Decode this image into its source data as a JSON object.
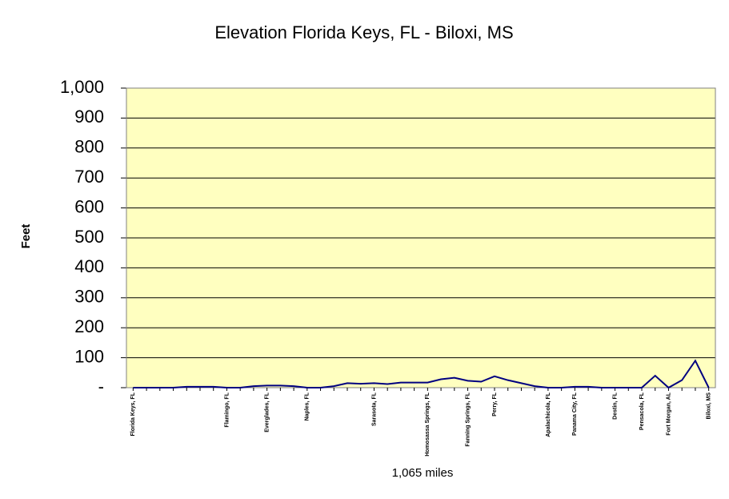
{
  "chart_data": {
    "type": "line",
    "title": "Elevation Florida Keys, FL - Biloxi, MS",
    "y_label": "Feet",
    "x_label": "1,065 miles",
    "categories": [
      "Florida Keys, FL",
      null,
      null,
      null,
      null,
      null,
      null,
      "Flamingo, FL",
      null,
      null,
      "Everglades, FL",
      null,
      null,
      "Naples, FL",
      null,
      null,
      null,
      null,
      "Sarasota, FL",
      null,
      null,
      null,
      "Homosassa Springs, FL",
      null,
      null,
      "Fanning Springs, FL",
      null,
      "Perry, FL",
      null,
      null,
      null,
      "Apalachicola, FL",
      null,
      "Panama City, FL",
      null,
      null,
      "Destin, FL",
      null,
      "Pensacola, FL",
      null,
      "Fort Morgan, AL",
      null,
      null,
      "Biloxi, MS"
    ],
    "values": [
      0,
      0,
      0,
      0,
      3,
      3,
      3,
      0,
      0,
      5,
      7,
      7,
      5,
      0,
      0,
      5,
      15,
      13,
      15,
      12,
      17,
      17,
      17,
      28,
      33,
      23,
      20,
      38,
      25,
      15,
      5,
      0,
      0,
      3,
      3,
      0,
      0,
      0,
      0,
      40,
      0,
      25,
      90,
      0
    ],
    "color": "#000080",
    "ylim": [
      0,
      1000
    ],
    "yticks": [
      {
        "value": 0,
        "label": "-"
      },
      100,
      200,
      300,
      400,
      500,
      600,
      700,
      800,
      900,
      {
        "value": 1000,
        "label": "1,000"
      }
    ],
    "grid": true
  }
}
